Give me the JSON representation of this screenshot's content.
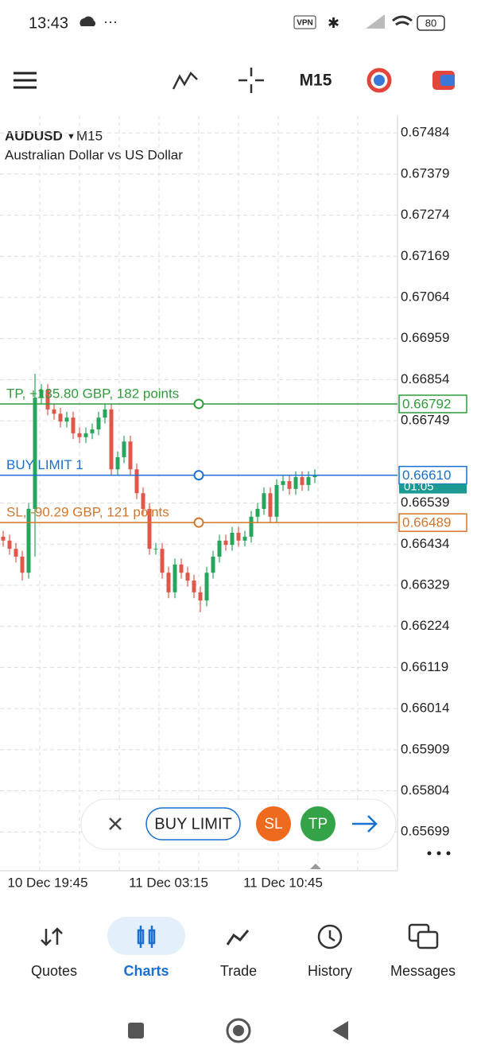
{
  "status_bar": {
    "time": "13:43",
    "vpn": "VPN",
    "battery": "80"
  },
  "toolbar": {
    "timeframe": "M15"
  },
  "chart_data": {
    "type": "candlestick",
    "symbol": "AUDUSD",
    "timeframe": "M15",
    "subtitle": "Australian Dollar vs US Dollar",
    "x": [
      null,
      null,
      null,
      null,
      null,
      null,
      null,
      "10 Dec 19:45",
      null,
      null,
      null,
      null,
      null,
      null,
      null,
      null,
      null,
      null,
      null,
      null,
      null,
      null,
      null,
      null,
      null,
      null,
      "11 Dec 03:15",
      null,
      null,
      null,
      null,
      null,
      null,
      null,
      null,
      null,
      null,
      null,
      null,
      null,
      null,
      null,
      null,
      null,
      "11 Dec 10:45",
      null,
      null,
      null,
      null,
      null
    ],
    "open": [
      0.66453,
      0.66443,
      0.66422,
      0.66402,
      0.66361,
      0.66524,
      0.66808,
      0.66828,
      0.66778,
      0.66767,
      0.66747,
      0.66757,
      0.66717,
      0.66707,
      0.66717,
      0.66727,
      0.66757,
      0.66778,
      0.66625,
      0.66656,
      0.66696,
      0.66625,
      0.66564,
      0.66524,
      0.66422,
      0.66422,
      0.66361,
      0.66311,
      0.66382,
      0.66361,
      0.66341,
      0.66311,
      0.6629,
      0.66361,
      0.66402,
      0.66443,
      0.66432,
      0.66463,
      0.66443,
      0.66453,
      0.66504,
      0.66524,
      0.66564,
      0.66504,
      0.66585,
      0.66595,
      0.66575,
      0.66605,
      0.66585,
      0.66605
    ],
    "high": [
      0.66468,
      0.66458,
      0.66437,
      0.66417,
      0.66539,
      0.66869,
      0.66843,
      0.66843,
      0.66793,
      0.66782,
      0.66772,
      0.66772,
      0.66732,
      0.66732,
      0.66742,
      0.66772,
      0.66793,
      0.66793,
      0.66671,
      0.66711,
      0.66711,
      0.6664,
      0.66579,
      0.66539,
      0.66437,
      0.66437,
      0.66376,
      0.66397,
      0.66397,
      0.66376,
      0.66356,
      0.66326,
      0.66376,
      0.66417,
      0.66458,
      0.66458,
      0.66478,
      0.66478,
      0.66468,
      0.66519,
      0.66539,
      0.66579,
      0.66579,
      0.666,
      0.6661,
      0.6661,
      0.6662,
      0.6662,
      0.6662,
      0.66625
    ],
    "low": [
      0.66428,
      0.66407,
      0.66387,
      0.66341,
      0.66346,
      0.66402,
      0.66793,
      0.66763,
      0.66752,
      0.66732,
      0.66732,
      0.66702,
      0.66692,
      0.66692,
      0.66702,
      0.66712,
      0.66742,
      0.6661,
      0.6661,
      0.66641,
      0.6661,
      0.66549,
      0.66509,
      0.66407,
      0.66407,
      0.66346,
      0.66296,
      0.66296,
      0.66346,
      0.66326,
      0.66296,
      0.6626,
      0.66275,
      0.66346,
      0.66387,
      0.66417,
      0.66417,
      0.66428,
      0.66428,
      0.66438,
      0.66489,
      0.66509,
      0.66489,
      0.66489,
      0.6657,
      0.6656,
      0.6656,
      0.6657,
      0.6657,
      0.6659
    ],
    "close": [
      0.66443,
      0.66422,
      0.66402,
      0.66361,
      0.66524,
      0.66808,
      0.66828,
      0.66778,
      0.66767,
      0.66747,
      0.66757,
      0.66717,
      0.66707,
      0.66717,
      0.66727,
      0.66757,
      0.66778,
      0.66625,
      0.66656,
      0.66696,
      0.66625,
      0.66564,
      0.66524,
      0.66422,
      0.66422,
      0.66361,
      0.66311,
      0.66382,
      0.66361,
      0.66341,
      0.66311,
      0.6629,
      0.66361,
      0.66402,
      0.66443,
      0.66432,
      0.66463,
      0.66443,
      0.66453,
      0.66504,
      0.66524,
      0.66564,
      0.66504,
      0.66585,
      0.66595,
      0.66575,
      0.66605,
      0.66585,
      0.66605,
      0.6661
    ],
    "up_color": "#26a65b",
    "down_color": "#e0564b",
    "ylim": [
      0.656,
      0.67529
    ],
    "yticks": [
      0.67484,
      0.67379,
      0.67274,
      0.67169,
      0.67064,
      0.66959,
      0.66854,
      0.66749,
      0.66539,
      0.66434,
      0.66329,
      0.66224,
      0.66119,
      0.66014,
      0.65909,
      0.65804,
      0.65699
    ],
    "grid": true,
    "levels": [
      {
        "name": "TP, +135.80 GBP, 182 points",
        "price": 0.66792,
        "color": "#2e9c3c"
      },
      {
        "name": "BUY LIMIT 1",
        "price": {
          "value": 0.6661,
          "label": "0.66610"
        },
        "color": "#1a6fd1"
      },
      {
        "name": "SL, -90.29 GBP, 121 points",
        "price": 0.66489,
        "color": "#d2762a"
      }
    ],
    "countdown": "01:05"
  },
  "order_bar": {
    "button": "BUY LIMIT",
    "sl": "SL",
    "tp": "TP"
  },
  "nav": {
    "items": [
      "Quotes",
      "Charts",
      "Trade",
      "History",
      "Messages"
    ]
  }
}
